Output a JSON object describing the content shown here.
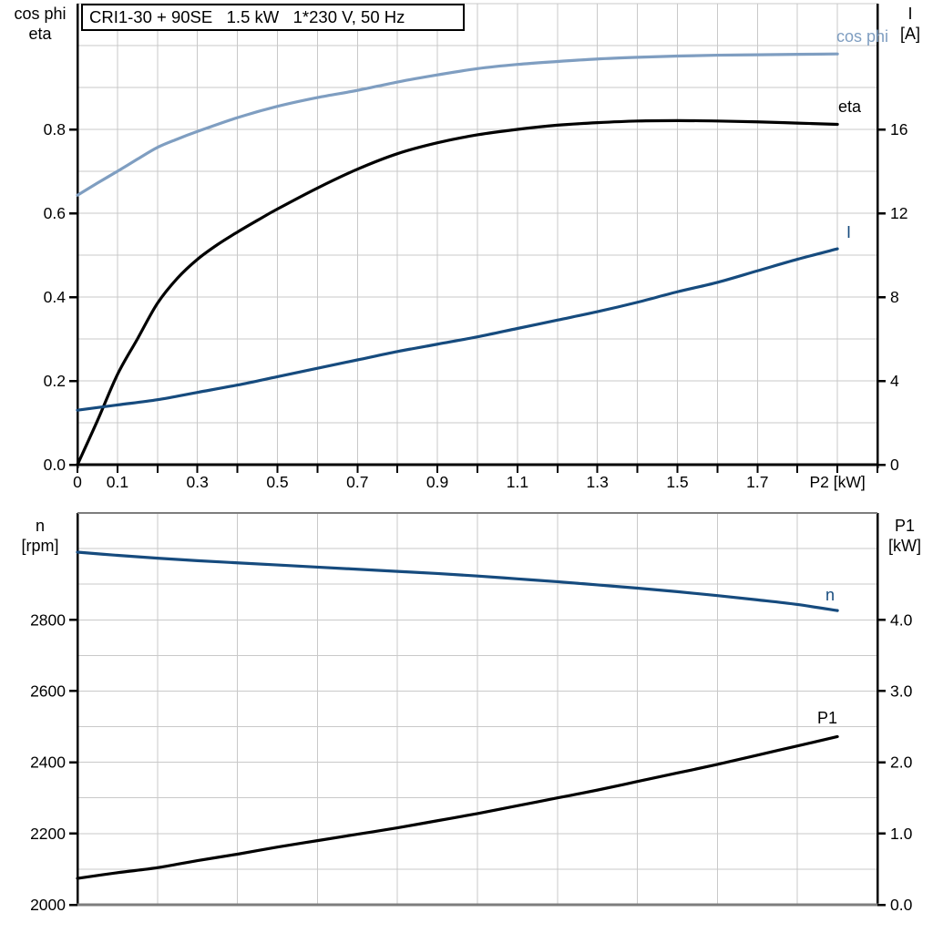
{
  "title_box": {
    "text": "CRI1-30 + 90SE   1.5 kW   1*230 V, 50 Hz"
  },
  "colors": {
    "cos_phi": "#7f9ec1",
    "current": "#164b7e",
    "eta": "#000000",
    "n": "#164b7e",
    "p1": "#000000",
    "grid": "#c9c9c9",
    "axis": "#000000",
    "frame_gray": "#7d7d7d"
  },
  "top_chart": {
    "left_axis": {
      "title_lines": [
        "cos phi",
        "eta"
      ],
      "tick_labels": [
        "0.0",
        "0.2",
        "0.4",
        "0.6",
        "0.8"
      ],
      "tick_values": [
        0,
        0.2,
        0.4,
        0.6,
        0.8
      ],
      "range": [
        0,
        1.1
      ]
    },
    "right_axis": {
      "title_lines": [
        "I",
        "[A]"
      ],
      "tick_labels": [
        "0",
        "4",
        "8",
        "12",
        "16"
      ],
      "tick_values": [
        0,
        4,
        8,
        12,
        16
      ],
      "range": [
        0,
        22
      ]
    },
    "x_axis": {
      "unit_label": "P2 [kW]",
      "unit_label_value": 1.9,
      "tick_labels": [
        "0",
        "0.1",
        "0.3",
        "0.5",
        "0.7",
        "0.9",
        "1.1",
        "1.3",
        "1.5",
        "1.7"
      ],
      "tick_values": [
        0,
        0.1,
        0.3,
        0.5,
        0.7,
        0.9,
        1.1,
        1.3,
        1.5,
        1.7
      ],
      "minor_step": 0.1,
      "range": [
        0,
        2.0
      ]
    },
    "curve_labels": {
      "cos_phi": "cos phi",
      "eta": "eta",
      "current": "I"
    }
  },
  "bottom_chart": {
    "left_axis": {
      "title_lines": [
        "n",
        "[rpm]"
      ],
      "tick_labels": [
        "2800",
        "2600",
        "2400",
        "2200",
        "2000"
      ],
      "tick_values": [
        2800,
        2600,
        2400,
        2200,
        2000
      ],
      "range": [
        2000,
        3100
      ]
    },
    "right_axis": {
      "title_lines": [
        "P1",
        "[kW]"
      ],
      "tick_labels": [
        "4.0",
        "3.0",
        "2.0",
        "1.0",
        "0.0"
      ],
      "tick_values": [
        4.0,
        3.0,
        2.0,
        1.0,
        0.0
      ],
      "range": [
        0,
        5.5
      ]
    },
    "x_axis": {
      "minor_step": 0.2,
      "range": [
        0,
        2.0
      ]
    },
    "curve_labels": {
      "n": "n",
      "p1": "P1"
    }
  },
  "chart_data": [
    {
      "type": "line",
      "title": "CRI1-30 + 90SE   1.5 kW   1*230 V, 50 Hz",
      "xlabel": "P2 [kW]",
      "x_range": [
        0,
        2.0
      ],
      "grid": true,
      "y_left": {
        "label": "cos phi / eta",
        "range": [
          0,
          1.1
        ]
      },
      "y_right": {
        "label": "I [A]",
        "range": [
          0,
          22
        ]
      },
      "series": [
        {
          "name": "cos phi",
          "axis": "left",
          "color": "#7f9ec1",
          "x": [
            0,
            0.05,
            0.1,
            0.15,
            0.2,
            0.25,
            0.3,
            0.4,
            0.5,
            0.6,
            0.7,
            0.8,
            0.9,
            1.0,
            1.1,
            1.2,
            1.3,
            1.4,
            1.5,
            1.6,
            1.7,
            1.8,
            1.9
          ],
          "y": [
            0.643,
            0.672,
            0.7,
            0.729,
            0.757,
            0.777,
            0.795,
            0.828,
            0.855,
            0.876,
            0.893,
            0.913,
            0.93,
            0.945,
            0.955,
            0.962,
            0.968,
            0.972,
            0.975,
            0.977,
            0.978,
            0.979,
            0.98
          ]
        },
        {
          "name": "eta",
          "axis": "left",
          "color": "#000000",
          "x": [
            0,
            0.05,
            0.1,
            0.15,
            0.2,
            0.25,
            0.3,
            0.35,
            0.4,
            0.45,
            0.5,
            0.6,
            0.7,
            0.8,
            0.9,
            1.0,
            1.1,
            1.2,
            1.3,
            1.4,
            1.5,
            1.6,
            1.7,
            1.8,
            1.9
          ],
          "y": [
            0,
            0.105,
            0.215,
            0.3,
            0.385,
            0.445,
            0.49,
            0.525,
            0.555,
            0.583,
            0.61,
            0.66,
            0.705,
            0.742,
            0.768,
            0.787,
            0.8,
            0.81,
            0.816,
            0.82,
            0.821,
            0.82,
            0.818,
            0.815,
            0.812
          ]
        },
        {
          "name": "I",
          "axis": "right",
          "color": "#164b7e",
          "x": [
            0,
            0.1,
            0.2,
            0.3,
            0.4,
            0.5,
            0.6,
            0.7,
            0.8,
            0.9,
            1.0,
            1.1,
            1.2,
            1.3,
            1.4,
            1.5,
            1.6,
            1.7,
            1.8,
            1.9
          ],
          "y": [
            2.6,
            2.85,
            3.1,
            3.45,
            3.8,
            4.2,
            4.6,
            5.0,
            5.4,
            5.75,
            6.1,
            6.5,
            6.9,
            7.3,
            7.75,
            8.25,
            8.7,
            9.25,
            9.8,
            10.3
          ]
        }
      ]
    },
    {
      "type": "line",
      "xlabel": "P2 [kW]",
      "x_range": [
        0,
        2.0
      ],
      "grid": true,
      "y_left": {
        "label": "n [rpm]",
        "range": [
          2000,
          3100
        ]
      },
      "y_right": {
        "label": "P1 [kW]",
        "range": [
          0,
          5.5
        ]
      },
      "series": [
        {
          "name": "n",
          "axis": "left",
          "color": "#164b7e",
          "x": [
            0,
            0.1,
            0.2,
            0.3,
            0.4,
            0.5,
            0.6,
            0.7,
            0.8,
            0.9,
            1.0,
            1.1,
            1.2,
            1.3,
            1.4,
            1.5,
            1.6,
            1.7,
            1.8,
            1.9
          ],
          "y": [
            2990,
            2981,
            2973,
            2966,
            2960,
            2954,
            2948,
            2942,
            2936,
            2930,
            2923,
            2915,
            2907,
            2898,
            2889,
            2879,
            2868,
            2856,
            2843,
            2826
          ]
        },
        {
          "name": "P1",
          "axis": "right",
          "color": "#000000",
          "x": [
            0,
            0.1,
            0.2,
            0.3,
            0.4,
            0.5,
            0.6,
            0.7,
            0.8,
            0.9,
            1.0,
            1.1,
            1.2,
            1.3,
            1.4,
            1.5,
            1.6,
            1.7,
            1.8,
            1.9
          ],
          "y": [
            0.37,
            0.45,
            0.52,
            0.62,
            0.71,
            0.81,
            0.9,
            0.99,
            1.08,
            1.18,
            1.28,
            1.39,
            1.5,
            1.61,
            1.73,
            1.85,
            1.97,
            2.1,
            2.23,
            2.36
          ]
        }
      ]
    }
  ]
}
